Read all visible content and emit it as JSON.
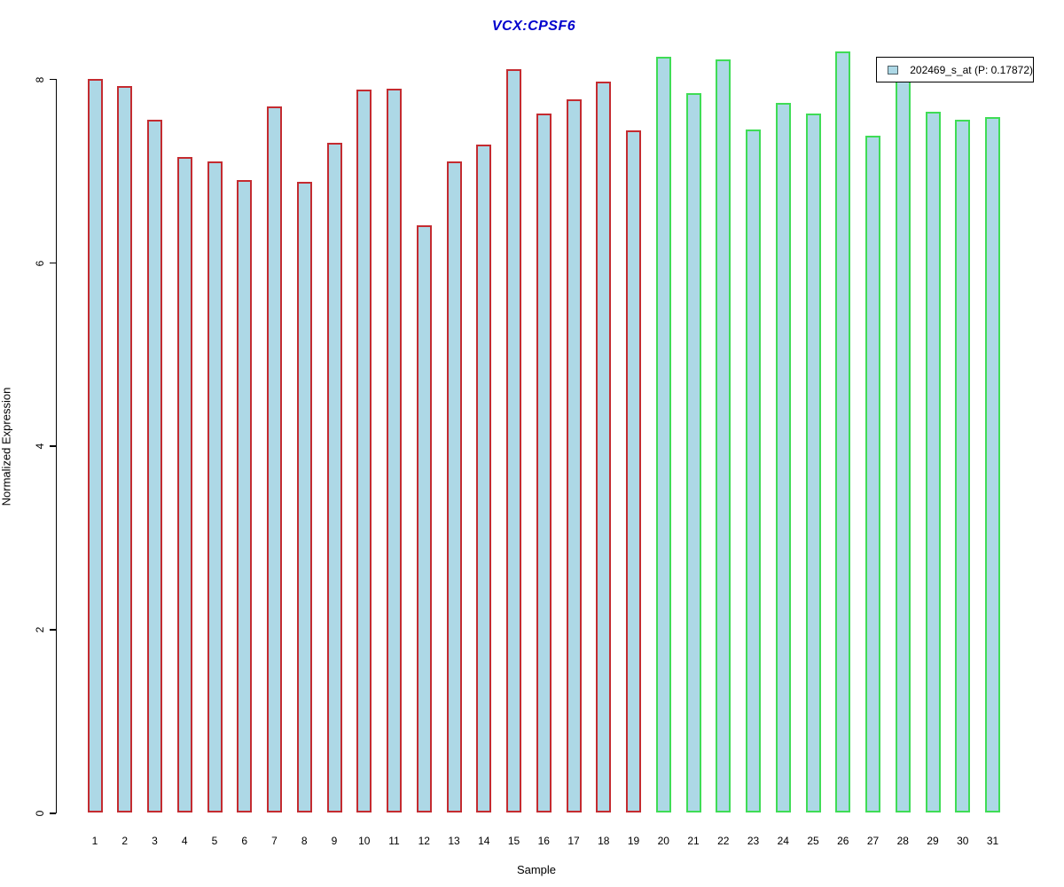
{
  "title": {
    "text": "VCX:CPSF6",
    "color": "#0000CD"
  },
  "axes": {
    "y": {
      "label": "Normalized Expression",
      "ticks": [
        "0",
        "2",
        "4",
        "6",
        "8"
      ],
      "tick_values": [
        0,
        2,
        4,
        6,
        8
      ]
    },
    "x": {
      "label": "Sample"
    }
  },
  "legend": {
    "label": "202469_s_at (P: 0.17872)",
    "swatch_fill": "#ADD8E6",
    "swatch_border": "#4f5f66"
  },
  "colors": {
    "bar_fill": "#ADD8E6",
    "border_group1": "#C42B30",
    "border_group2": "#3FDC55",
    "title_blue": "#0000CD"
  },
  "chart_data": {
    "type": "bar",
    "title": "VCX:CPSF6",
    "xlabel": "Sample",
    "ylabel": "Normalized Expression",
    "ylim": [
      0,
      8.8
    ],
    "y_ticks": [
      0,
      2,
      4,
      6,
      8
    ],
    "grid": false,
    "legend_position": "top-right",
    "categories": [
      "1",
      "2",
      "3",
      "4",
      "5",
      "6",
      "7",
      "8",
      "9",
      "10",
      "11",
      "12",
      "13",
      "14",
      "15",
      "16",
      "17",
      "18",
      "19",
      "20",
      "21",
      "22",
      "23",
      "24",
      "25",
      "26",
      "27",
      "28",
      "29",
      "30",
      "31"
    ],
    "series": [
      {
        "name": "202469_s_at (P: 0.17872)",
        "values": [
          8.0,
          7.92,
          7.55,
          7.15,
          7.1,
          6.9,
          7.7,
          6.88,
          7.3,
          7.88,
          7.89,
          6.4,
          7.1,
          7.28,
          8.1,
          7.62,
          7.78,
          7.97,
          7.44,
          8.24,
          7.84,
          8.21,
          7.45,
          7.74,
          7.62,
          8.3,
          7.38,
          8.0,
          7.64,
          7.55,
          7.58
        ]
      }
    ],
    "bar_groups": [
      {
        "from_index": 0,
        "to_index": 18,
        "border_color_key": "border_group1"
      },
      {
        "from_index": 19,
        "to_index": 30,
        "border_color_key": "border_group2"
      }
    ]
  }
}
